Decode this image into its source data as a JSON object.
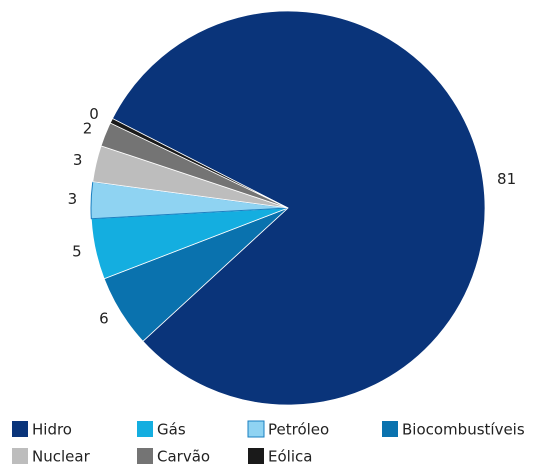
{
  "chart_data": {
    "type": "pie",
    "categories": [
      "Hidro",
      "Biocombustíveis",
      "Gás",
      "Petróleo",
      "Nuclear",
      "Carvão",
      "Eólica"
    ],
    "values": [
      81,
      6,
      5,
      3,
      3,
      2,
      0.4
    ],
    "value_labels": [
      "81",
      "6",
      "5",
      "3",
      "3",
      "2",
      "0"
    ],
    "colors": [
      "#0a347a",
      "#0a72ae",
      "#14aee0",
      "#8fd3f2",
      "#bdbdbd",
      "#747474",
      "#1a1a1a"
    ]
  }
}
